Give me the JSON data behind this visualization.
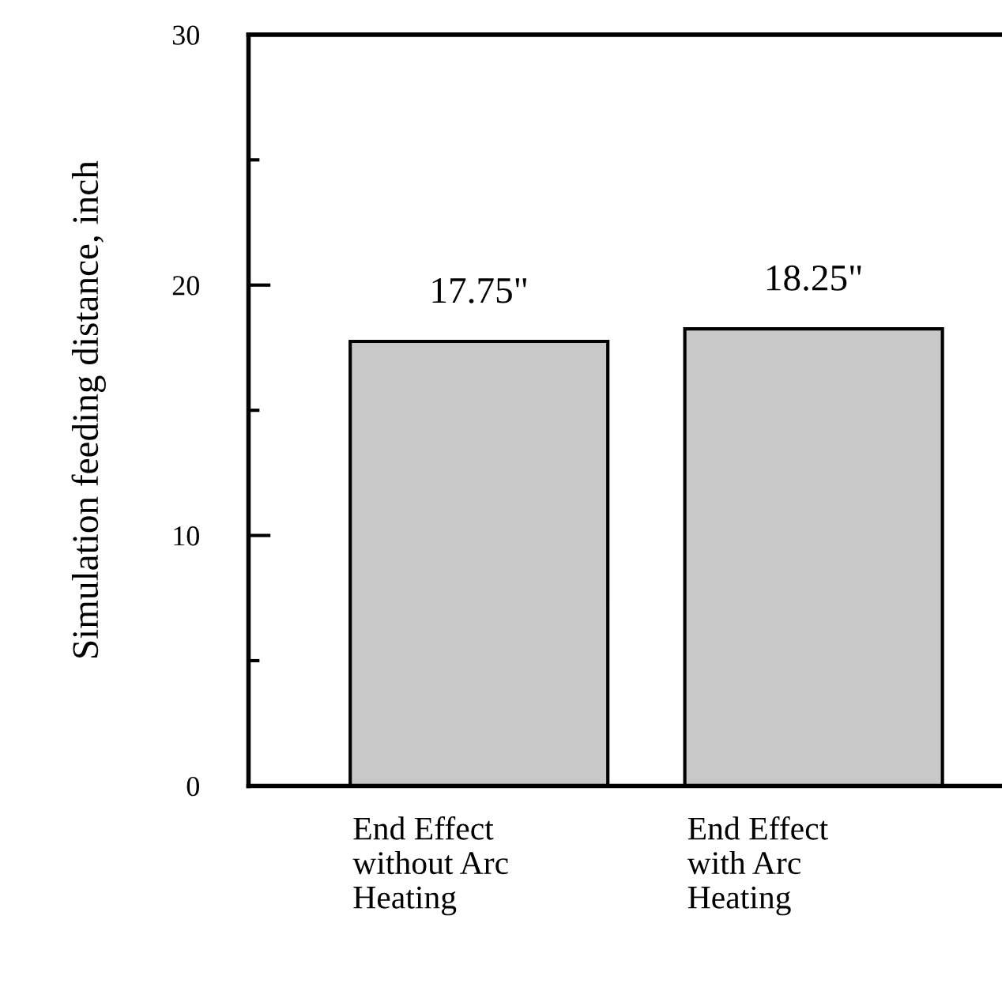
{
  "chart_data": {
    "type": "bar",
    "ylabel": "Simulation feeding distance, inch",
    "categories": [
      "End Effect\nwithout Arc\nHeating",
      "End Effect\nwith Arc\nHeating"
    ],
    "values": [
      17.75,
      18.25
    ],
    "value_labels": [
      "17.75\"",
      "18.25\""
    ],
    "color": "#c8c8c8",
    "ylim": [
      0,
      30
    ],
    "yticks": [
      0,
      10,
      20,
      30
    ],
    "grid": false
  }
}
